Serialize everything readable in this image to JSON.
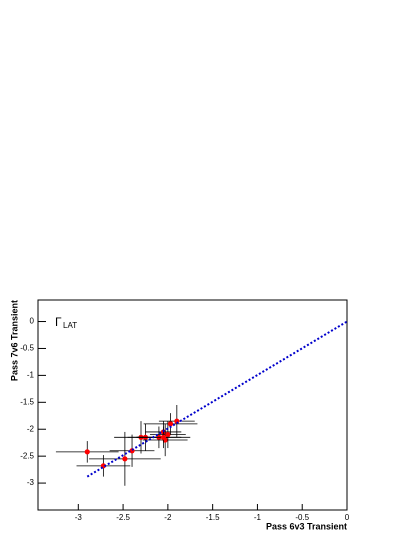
{
  "chart_data": {
    "type": "scatter",
    "x_label": "Pass 6v3 Transient",
    "y_label": "Pass 7v6 Transient",
    "annotation": {
      "symbol": "Γ",
      "subscript": "LAT"
    },
    "xlim": [
      -3.45,
      0
    ],
    "ylim": [
      -3.5,
      0.4
    ],
    "xticks": [
      -3,
      -2.5,
      -2,
      -1.5,
      -1,
      -0.5,
      0
    ],
    "yticks": [
      0,
      -0.5,
      -1,
      -1.5,
      -2,
      -2.5,
      -3
    ],
    "series": [
      {
        "type": "scatter",
        "color": "#ff0000",
        "x": [
          -2.9,
          -2.72,
          -2.48,
          -2.4,
          -2.3,
          -2.25,
          -2.1,
          -2.05,
          -2.03,
          -2.0,
          -1.97,
          -1.9,
          -2.05
        ],
        "values": [
          -2.42,
          -2.68,
          -2.55,
          -2.4,
          -2.15,
          -2.15,
          -2.15,
          -2.05,
          -2.2,
          -2.1,
          -1.9,
          -1.85,
          -2.15
        ],
        "xerr": [
          0.35,
          0.3,
          0.4,
          0.25,
          0.3,
          0.2,
          0.25,
          0.2,
          0.25,
          0.2,
          0.3,
          0.2,
          0.3
        ],
        "yerr": [
          0.2,
          0.2,
          0.5,
          0.3,
          0.3,
          0.25,
          0.2,
          0.2,
          0.3,
          0.25,
          0.2,
          0.3,
          0.2
        ]
      },
      {
        "type": "line",
        "color": "#0000cc",
        "x": [
          -2.9,
          0
        ],
        "values": [
          -2.88,
          0
        ]
      }
    ]
  }
}
